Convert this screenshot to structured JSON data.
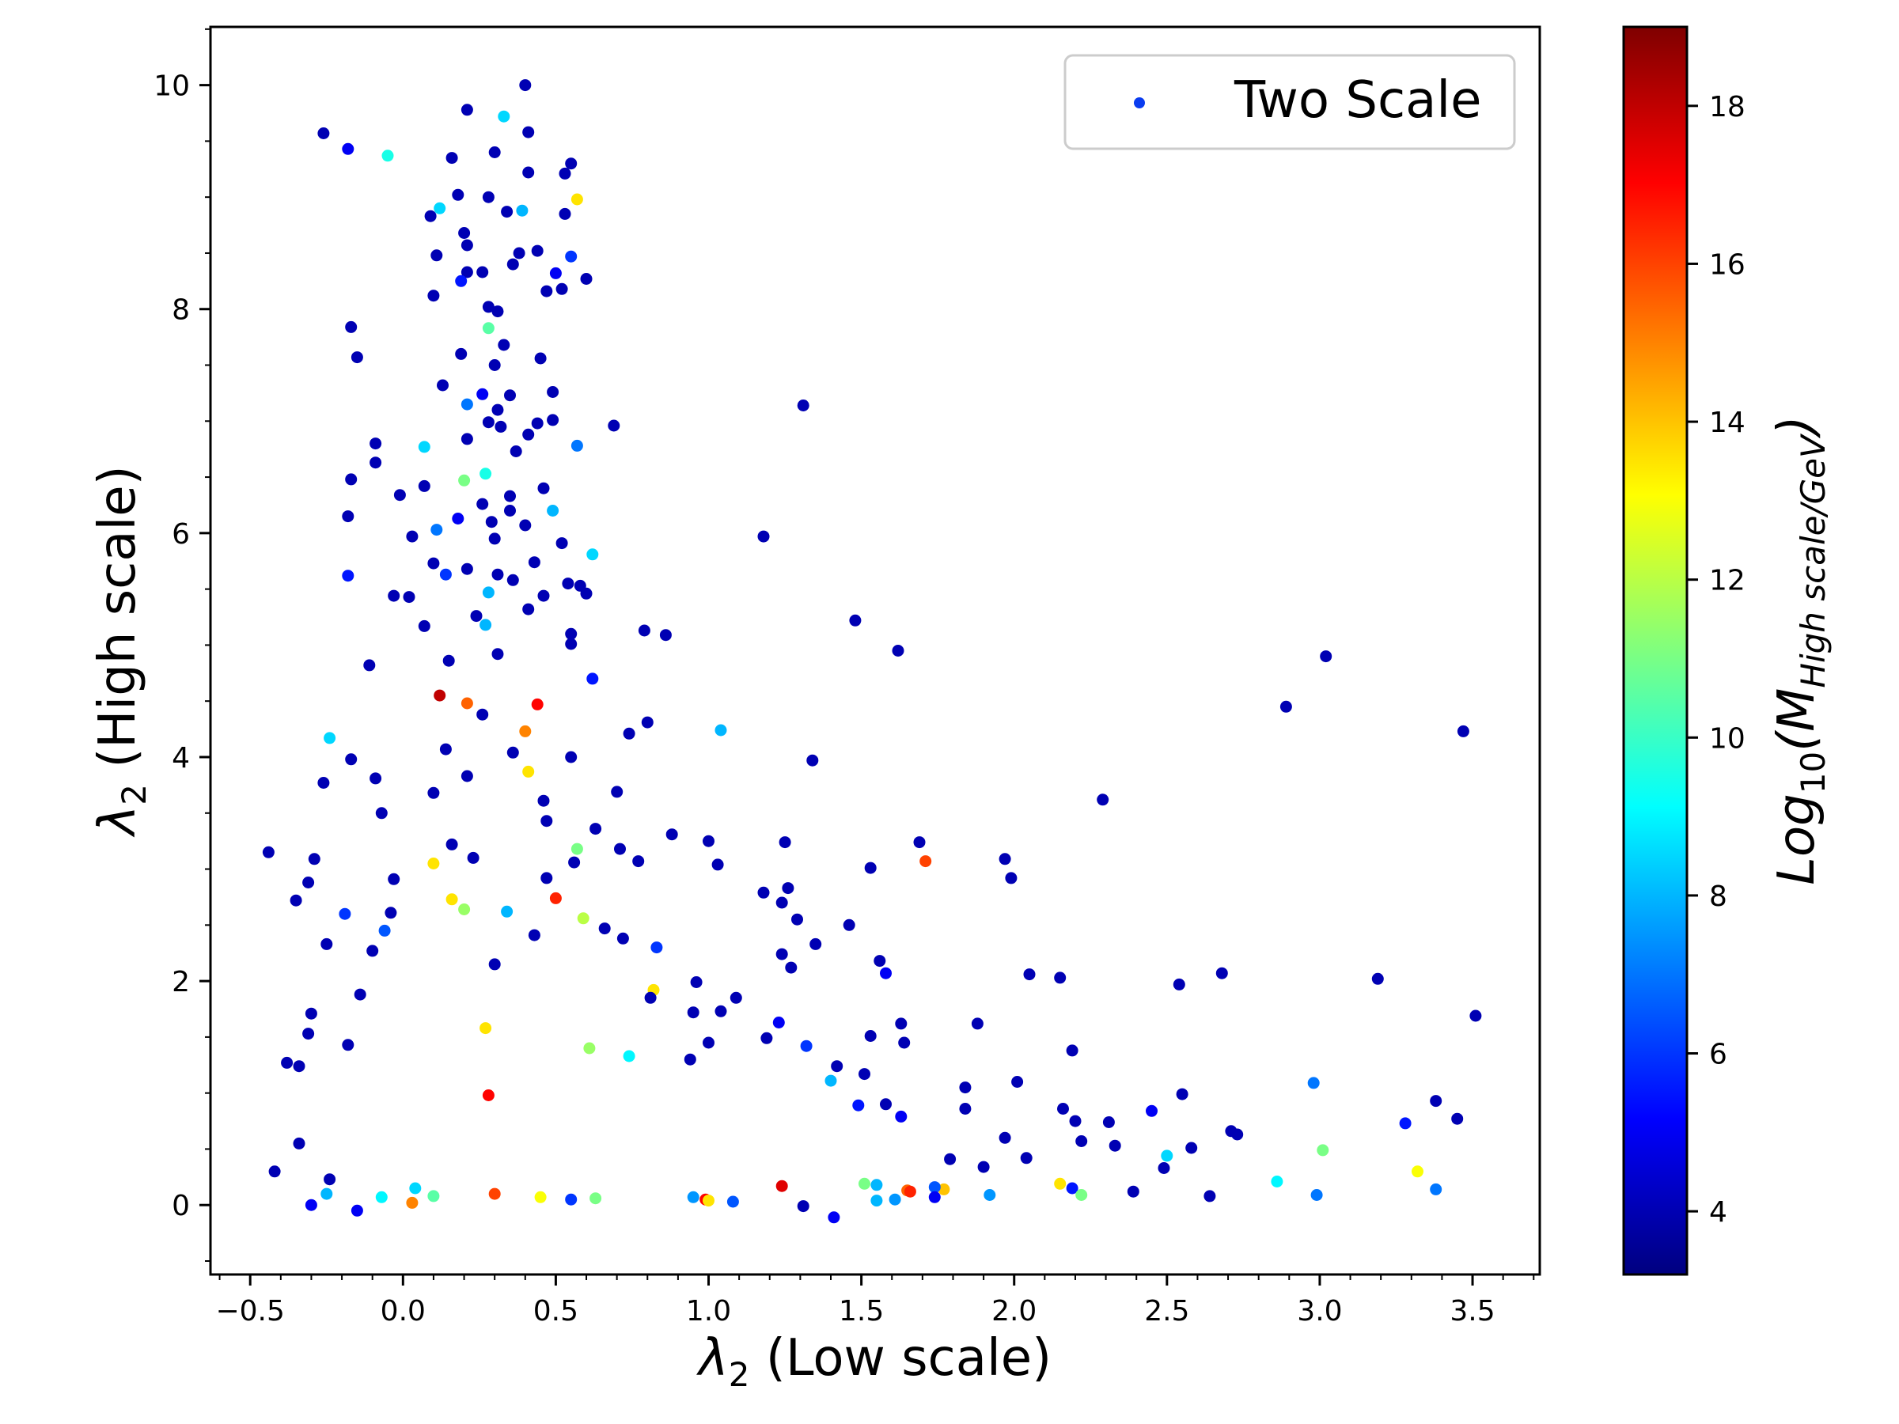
{
  "chart_data": {
    "type": "scatter",
    "xlabel_symbol": "λ",
    "xlabel_sub": "2",
    "xlabel_rest": " (Low scale)",
    "ylabel_symbol": "λ",
    "ylabel_sub": "2",
    "ylabel_rest": " (High scale)",
    "xlim": [
      -0.63,
      3.72
    ],
    "ylim": [
      -0.62,
      10.52
    ],
    "xticks": [
      -0.5,
      0.0,
      0.5,
      1.0,
      1.5,
      2.0,
      2.5,
      3.0,
      3.5
    ],
    "xtick_labels": [
      "−0.5",
      "0.0",
      "0.5",
      "1.0",
      "1.5",
      "2.0",
      "2.5",
      "3.0",
      "3.5"
    ],
    "yticks": [
      0,
      2,
      4,
      6,
      8,
      10
    ],
    "ytick_labels": [
      "0",
      "2",
      "4",
      "6",
      "8",
      "10"
    ],
    "grid": false,
    "legend": {
      "label": "Two Scale",
      "position": "top-right",
      "marker_color": "#0a3cf0"
    },
    "colorbar": {
      "label_base": "Log",
      "label_base_sub": "10",
      "label_var": "(M",
      "label_var_sub": "High scale/GeV",
      "label_close": ")",
      "range": [
        3.2,
        19.0
      ],
      "ticks": [
        4,
        6,
        8,
        10,
        12,
        14,
        16,
        18
      ],
      "tick_labels": [
        "4",
        "6",
        "8",
        "10",
        "12",
        "14",
        "16",
        "18"
      ],
      "colormap": "jet"
    },
    "points": [
      [
        0.4,
        10.0,
        4.0
      ],
      [
        0.33,
        9.72,
        8.5
      ],
      [
        0.21,
        9.78,
        4.0
      ],
      [
        -0.26,
        9.57,
        4.0
      ],
      [
        -0.18,
        9.43,
        5.0
      ],
      [
        -0.05,
        9.37,
        9.5
      ],
      [
        0.41,
        9.58,
        4.0
      ],
      [
        0.3,
        9.4,
        4.0
      ],
      [
        0.55,
        9.3,
        4.0
      ],
      [
        0.16,
        9.35,
        4.0
      ],
      [
        0.41,
        9.22,
        4.0
      ],
      [
        0.53,
        9.21,
        4.0
      ],
      [
        0.57,
        8.98,
        13.5
      ],
      [
        0.18,
        9.02,
        4.0
      ],
      [
        0.28,
        9.0,
        4.0
      ],
      [
        0.39,
        8.88,
        8.0
      ],
      [
        0.34,
        8.87,
        4.0
      ],
      [
        0.12,
        8.9,
        8.5
      ],
      [
        0.53,
        8.85,
        4.0
      ],
      [
        0.09,
        8.83,
        4.0
      ],
      [
        0.2,
        8.68,
        4.0
      ],
      [
        0.44,
        8.52,
        4.0
      ],
      [
        0.38,
        8.5,
        4.0
      ],
      [
        0.55,
        8.47,
        6.0
      ],
      [
        0.11,
        8.48,
        4.0
      ],
      [
        0.21,
        8.57,
        4.0
      ],
      [
        0.36,
        8.4,
        4.0
      ],
      [
        0.5,
        8.32,
        5.0
      ],
      [
        0.21,
        8.33,
        4.0
      ],
      [
        0.26,
        8.33,
        4.0
      ],
      [
        0.6,
        8.27,
        4.0
      ],
      [
        0.19,
        8.25,
        5.5
      ],
      [
        0.47,
        8.16,
        4.0
      ],
      [
        0.1,
        8.12,
        4.0
      ],
      [
        0.52,
        8.18,
        4.0
      ],
      [
        0.28,
        8.02,
        4.0
      ],
      [
        0.31,
        7.98,
        4.0
      ],
      [
        -0.17,
        7.84,
        4.0
      ],
      [
        0.28,
        7.83,
        10.5
      ],
      [
        -0.15,
        7.57,
        4.0
      ],
      [
        0.33,
        7.68,
        4.0
      ],
      [
        0.45,
        7.56,
        4.0
      ],
      [
        0.19,
        7.6,
        4.0
      ],
      [
        0.3,
        7.5,
        4.0
      ],
      [
        0.13,
        7.32,
        4.0
      ],
      [
        0.31,
        7.1,
        4.0
      ],
      [
        0.26,
        7.24,
        5.0
      ],
      [
        0.21,
        7.15,
        7.0
      ],
      [
        0.49,
        7.26,
        4.0
      ],
      [
        0.35,
        7.23,
        4.0
      ],
      [
        1.31,
        7.14,
        4.0
      ],
      [
        0.69,
        6.96,
        4.0
      ],
      [
        0.32,
        6.95,
        4.0
      ],
      [
        0.28,
        6.99,
        4.0
      ],
      [
        0.44,
        6.98,
        4.0
      ],
      [
        0.49,
        7.01,
        4.0
      ],
      [
        0.41,
        6.88,
        4.0
      ],
      [
        -0.09,
        6.8,
        4.0
      ],
      [
        0.07,
        6.77,
        8.5
      ],
      [
        0.57,
        6.78,
        7.0
      ],
      [
        0.21,
        6.84,
        4.0
      ],
      [
        0.37,
        6.73,
        4.0
      ],
      [
        -0.09,
        6.63,
        4.0
      ],
      [
        -0.17,
        6.48,
        4.0
      ],
      [
        0.2,
        6.47,
        11.0
      ],
      [
        0.27,
        6.53,
        9.5
      ],
      [
        0.07,
        6.42,
        4.0
      ],
      [
        0.46,
        6.4,
        4.0
      ],
      [
        0.35,
        6.33,
        4.0
      ],
      [
        -0.01,
        6.34,
        4.0
      ],
      [
        0.26,
        6.26,
        4.0
      ],
      [
        0.49,
        6.2,
        8.0
      ],
      [
        0.35,
        6.2,
        4.0
      ],
      [
        0.29,
        6.1,
        4.0
      ],
      [
        0.18,
        6.13,
        5.0
      ],
      [
        -0.18,
        6.15,
        4.0
      ],
      [
        0.4,
        6.07,
        4.0
      ],
      [
        0.11,
        6.03,
        7.0
      ],
      [
        0.3,
        5.95,
        4.0
      ],
      [
        1.18,
        5.97,
        4.0
      ],
      [
        0.03,
        5.97,
        4.0
      ],
      [
        0.52,
        5.91,
        4.0
      ],
      [
        0.62,
        5.81,
        8.5
      ],
      [
        0.1,
        5.73,
        4.0
      ],
      [
        0.43,
        5.74,
        4.0
      ],
      [
        0.21,
        5.68,
        4.0
      ],
      [
        0.31,
        5.63,
        4.0
      ],
      [
        0.14,
        5.63,
        6.0
      ],
      [
        -0.18,
        5.62,
        5.5
      ],
      [
        0.36,
        5.58,
        4.0
      ],
      [
        0.54,
        5.55,
        4.0
      ],
      [
        0.58,
        5.53,
        4.0
      ],
      [
        0.28,
        5.47,
        8.0
      ],
      [
        0.6,
        5.46,
        4.0
      ],
      [
        0.46,
        5.44,
        4.0
      ],
      [
        -0.03,
        5.44,
        4.0
      ],
      [
        0.02,
        5.43,
        4.0
      ],
      [
        0.41,
        5.32,
        4.0
      ],
      [
        0.24,
        5.26,
        4.0
      ],
      [
        1.48,
        5.22,
        4.0
      ],
      [
        0.79,
        5.13,
        4.0
      ],
      [
        0.86,
        5.09,
        4.0
      ],
      [
        0.27,
        5.18,
        8.0
      ],
      [
        0.55,
        5.1,
        4.0
      ],
      [
        0.07,
        5.17,
        4.0
      ],
      [
        0.55,
        5.01,
        4.0
      ],
      [
        1.62,
        4.95,
        4.0
      ],
      [
        3.02,
        4.9,
        4.0
      ],
      [
        0.31,
        4.92,
        4.0
      ],
      [
        0.15,
        4.86,
        4.0
      ],
      [
        -0.11,
        4.82,
        4.0
      ],
      [
        0.62,
        4.7,
        5.5
      ],
      [
        0.12,
        4.55,
        18.0
      ],
      [
        0.21,
        4.48,
        15.5
      ],
      [
        0.44,
        4.47,
        17.0
      ],
      [
        2.89,
        4.45,
        4.0
      ],
      [
        0.26,
        4.38,
        4.0
      ],
      [
        0.8,
        4.31,
        4.0
      ],
      [
        1.04,
        4.24,
        8.0
      ],
      [
        3.47,
        4.23,
        4.0
      ],
      [
        0.4,
        4.23,
        15.0
      ],
      [
        0.74,
        4.21,
        4.0
      ],
      [
        -0.24,
        4.17,
        8.5
      ],
      [
        0.14,
        4.07,
        4.0
      ],
      [
        0.36,
        4.04,
        4.0
      ],
      [
        0.55,
        4.0,
        4.0
      ],
      [
        -0.17,
        3.98,
        4.0
      ],
      [
        1.34,
        3.97,
        4.0
      ],
      [
        0.41,
        3.87,
        13.5
      ],
      [
        0.21,
        3.83,
        4.0
      ],
      [
        -0.09,
        3.81,
        4.0
      ],
      [
        -0.26,
        3.77,
        4.0
      ],
      [
        0.7,
        3.69,
        4.0
      ],
      [
        0.1,
        3.68,
        4.0
      ],
      [
        0.46,
        3.61,
        4.0
      ],
      [
        2.29,
        3.62,
        4.0
      ],
      [
        -0.07,
        3.5,
        4.0
      ],
      [
        0.47,
        3.43,
        4.0
      ],
      [
        0.63,
        3.36,
        4.0
      ],
      [
        0.88,
        3.31,
        4.0
      ],
      [
        0.16,
        3.22,
        4.0
      ],
      [
        1.0,
        3.25,
        4.0
      ],
      [
        1.25,
        3.24,
        4.0
      ],
      [
        1.69,
        3.24,
        4.0
      ],
      [
        -0.44,
        3.15,
        4.0
      ],
      [
        0.57,
        3.18,
        11.0
      ],
      [
        0.71,
        3.18,
        4.0
      ],
      [
        0.56,
        3.06,
        4.0
      ],
      [
        0.77,
        3.07,
        4.0
      ],
      [
        1.71,
        3.07,
        16.0
      ],
      [
        1.97,
        3.09,
        4.0
      ],
      [
        -0.29,
        3.09,
        4.0
      ],
      [
        0.1,
        3.05,
        13.5
      ],
      [
        0.23,
        3.1,
        4.0
      ],
      [
        1.03,
        3.04,
        4.0
      ],
      [
        1.53,
        3.01,
        4.0
      ],
      [
        -0.31,
        2.88,
        4.0
      ],
      [
        1.99,
        2.92,
        4.0
      ],
      [
        0.47,
        2.92,
        4.0
      ],
      [
        1.26,
        2.83,
        4.0
      ],
      [
        1.18,
        2.79,
        4.0
      ],
      [
        0.16,
        2.73,
        13.5
      ],
      [
        0.5,
        2.74,
        16.5
      ],
      [
        -0.35,
        2.72,
        4.0
      ],
      [
        1.24,
        2.7,
        4.0
      ],
      [
        0.2,
        2.64,
        11.5
      ],
      [
        0.34,
        2.62,
        8.0
      ],
      [
        -0.19,
        2.6,
        6.0
      ],
      [
        0.59,
        2.56,
        12.0
      ],
      [
        1.29,
        2.55,
        4.0
      ],
      [
        1.46,
        2.5,
        4.0
      ],
      [
        0.66,
        2.47,
        4.0
      ],
      [
        -0.06,
        2.45,
        6.5
      ],
      [
        0.43,
        2.41,
        4.0
      ],
      [
        0.72,
        2.38,
        4.0
      ],
      [
        1.35,
        2.33,
        4.0
      ],
      [
        -0.25,
        2.33,
        4.0
      ],
      [
        0.83,
        2.3,
        6.0
      ],
      [
        1.24,
        2.24,
        4.0
      ],
      [
        1.56,
        2.18,
        4.0
      ],
      [
        0.3,
        2.15,
        4.0
      ],
      [
        1.27,
        2.12,
        4.0
      ],
      [
        1.58,
        2.07,
        5.0
      ],
      [
        2.05,
        2.06,
        4.0
      ],
      [
        2.68,
        2.07,
        4.0
      ],
      [
        2.15,
        2.03,
        4.0
      ],
      [
        3.19,
        2.02,
        4.0
      ],
      [
        0.96,
        1.99,
        4.0
      ],
      [
        2.54,
        1.97,
        4.0
      ],
      [
        0.82,
        1.92,
        13.5
      ],
      [
        -0.14,
        1.88,
        4.0
      ],
      [
        0.81,
        1.85,
        4.0
      ],
      [
        1.09,
        1.85,
        4.0
      ],
      [
        3.51,
        1.69,
        4.0
      ],
      [
        0.95,
        1.72,
        4.0
      ],
      [
        1.04,
        1.73,
        4.0
      ],
      [
        1.23,
        1.63,
        5.0
      ],
      [
        1.63,
        1.62,
        4.0
      ],
      [
        1.88,
        1.62,
        4.0
      ],
      [
        0.27,
        1.58,
        13.5
      ],
      [
        1.53,
        1.51,
        4.0
      ],
      [
        1.19,
        1.49,
        4.0
      ],
      [
        1.0,
        1.45,
        4.0
      ],
      [
        1.64,
        1.45,
        4.0
      ],
      [
        1.32,
        1.42,
        6.0
      ],
      [
        2.19,
        1.38,
        4.0
      ],
      [
        0.61,
        1.4,
        11.5
      ],
      [
        0.94,
        1.3,
        4.0
      ],
      [
        0.74,
        1.33,
        9.0
      ],
      [
        1.42,
        1.24,
        4.0
      ],
      [
        1.51,
        1.17,
        4.0
      ],
      [
        1.4,
        1.11,
        8.0
      ],
      [
        2.01,
        1.1,
        4.0
      ],
      [
        1.84,
        1.05,
        4.0
      ],
      [
        2.98,
        1.09,
        7.0
      ],
      [
        0.28,
        0.98,
        17.0
      ],
      [
        2.55,
        0.99,
        4.0
      ],
      [
        1.84,
        0.86,
        4.0
      ],
      [
        1.63,
        0.79,
        5.0
      ],
      [
        2.16,
        0.86,
        4.0
      ],
      [
        1.58,
        0.9,
        4.0
      ],
      [
        2.45,
        0.84,
        5.0
      ],
      [
        1.49,
        0.89,
        5.5
      ],
      [
        3.38,
        0.93,
        4.0
      ],
      [
        3.45,
        0.77,
        4.0
      ],
      [
        3.28,
        0.73,
        5.5
      ],
      [
        2.2,
        0.75,
        4.0
      ],
      [
        2.31,
        0.74,
        4.0
      ],
      [
        2.71,
        0.66,
        4.0
      ],
      [
        2.73,
        0.63,
        4.0
      ],
      [
        1.97,
        0.6,
        4.0
      ],
      [
        2.22,
        0.57,
        4.0
      ],
      [
        2.33,
        0.53,
        4.0
      ],
      [
        2.58,
        0.51,
        4.0
      ],
      [
        3.01,
        0.49,
        11.0
      ],
      [
        2.5,
        0.44,
        8.5
      ],
      [
        2.04,
        0.42,
        4.0
      ],
      [
        1.79,
        0.41,
        4.0
      ],
      [
        1.9,
        0.34,
        4.0
      ],
      [
        2.49,
        0.33,
        4.0
      ],
      [
        3.32,
        0.3,
        13.0
      ],
      [
        2.86,
        0.21,
        9.0
      ],
      [
        2.15,
        0.19,
        13.5
      ],
      [
        2.19,
        0.15,
        5.5
      ],
      [
        3.38,
        0.14,
        7.0
      ],
      [
        2.39,
        0.12,
        4.0
      ],
      [
        2.64,
        0.08,
        4.0
      ],
      [
        2.99,
        0.09,
        7.0
      ],
      [
        2.22,
        0.09,
        11.0
      ],
      [
        1.92,
        0.09,
        7.5
      ],
      [
        1.77,
        0.14,
        14.0
      ],
      [
        1.65,
        0.13,
        15.5
      ],
      [
        1.74,
        0.16,
        6.5
      ],
      [
        1.55,
        0.18,
        8.0
      ],
      [
        1.51,
        0.19,
        11.0
      ],
      [
        1.66,
        0.12,
        16.5
      ],
      [
        1.24,
        0.17,
        17.5
      ],
      [
        0.99,
        0.05,
        17.0
      ],
      [
        1.0,
        0.04,
        13.5
      ],
      [
        0.95,
        0.07,
        7.5
      ],
      [
        1.08,
        0.03,
        6.5
      ],
      [
        1.31,
        -0.01,
        4.0
      ],
      [
        1.41,
        -0.11,
        5.0
      ],
      [
        1.55,
        0.04,
        8.0
      ],
      [
        1.61,
        0.05,
        7.5
      ],
      [
        1.74,
        0.07,
        5.0
      ],
      [
        -0.42,
        0.3,
        4.0
      ],
      [
        -0.34,
        0.55,
        4.0
      ],
      [
        -0.38,
        1.27,
        4.0
      ],
      [
        -0.34,
        1.24,
        4.0
      ],
      [
        -0.31,
        1.53,
        4.0
      ],
      [
        -0.3,
        1.71,
        4.0
      ],
      [
        -0.18,
        1.43,
        4.0
      ],
      [
        -0.1,
        2.27,
        4.0
      ],
      [
        -0.04,
        2.61,
        4.0
      ],
      [
        -0.03,
        2.91,
        4.0
      ],
      [
        -0.3,
        0.0,
        5.0
      ],
      [
        -0.25,
        0.1,
        8.0
      ],
      [
        -0.24,
        0.23,
        4.0
      ],
      [
        -0.15,
        -0.05,
        5.0
      ],
      [
        -0.07,
        0.07,
        9.0
      ],
      [
        0.03,
        0.02,
        15.0
      ],
      [
        0.04,
        0.15,
        8.5
      ],
      [
        0.1,
        0.08,
        10.5
      ],
      [
        0.3,
        0.1,
        16.0
      ],
      [
        0.45,
        0.07,
        13.0
      ],
      [
        0.55,
        0.05,
        6.0
      ],
      [
        0.63,
        0.06,
        11.0
      ]
    ]
  }
}
